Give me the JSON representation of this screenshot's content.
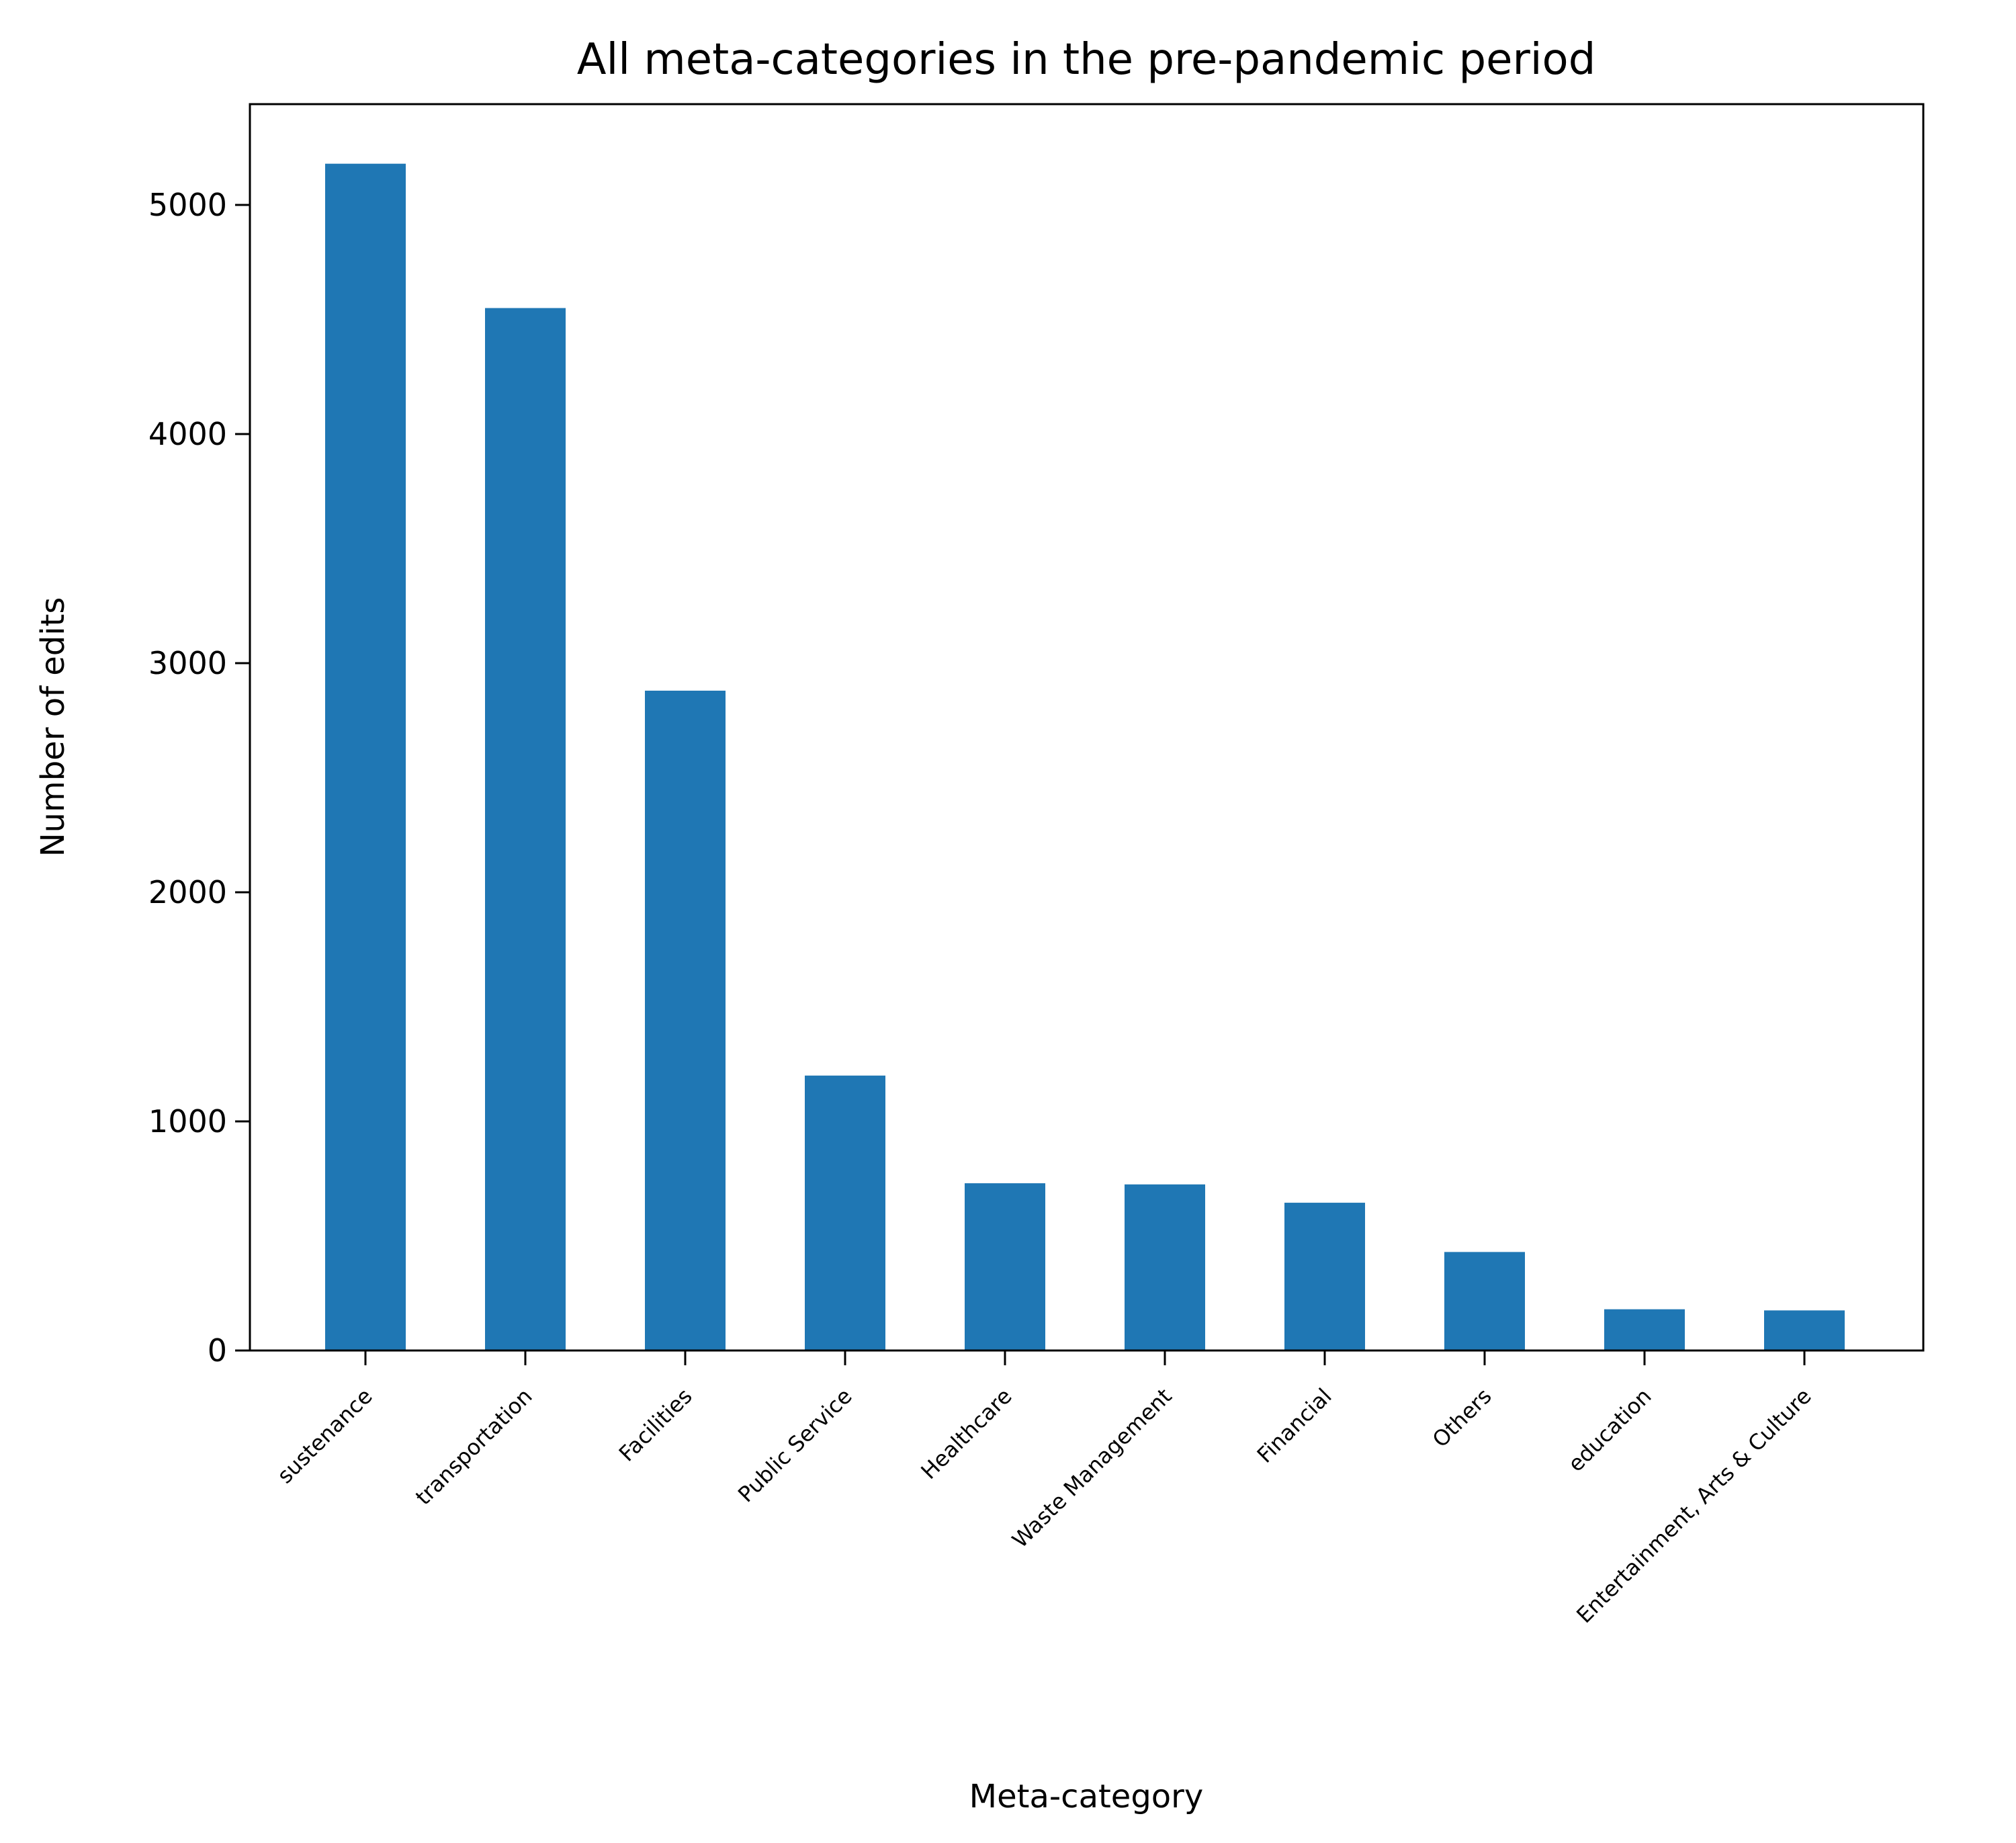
{
  "chart_data": {
    "type": "bar",
    "title": "All meta-categories in the pre-pandemic period",
    "xlabel": "Meta-category",
    "ylabel": "Number of edits",
    "categories": [
      "sustenance",
      "transportation",
      "Facilities",
      "Public Service",
      "Healthcare",
      "Waste Management",
      "Financial",
      "Others",
      "education",
      "Entertainment, Arts & Culture"
    ],
    "values": [
      5180,
      4550,
      2880,
      1200,
      730,
      725,
      645,
      430,
      180,
      175
    ],
    "yticks": [
      "0",
      "1000",
      "2000",
      "3000",
      "4000",
      "5000"
    ],
    "ytick_values": [
      0,
      1000,
      2000,
      3000,
      4000,
      5000
    ],
    "ylim": [
      0,
      5440
    ],
    "bar_color": "#1f77b4",
    "grid": false,
    "legend": "none"
  }
}
